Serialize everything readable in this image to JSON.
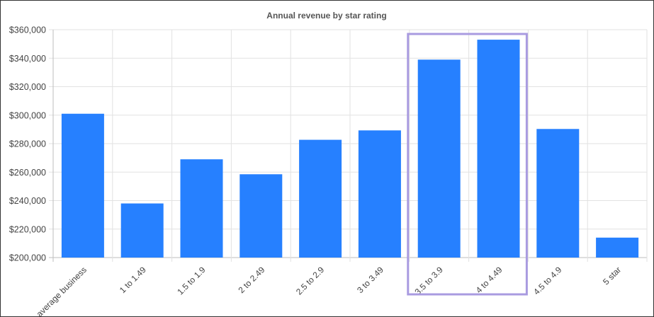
{
  "chart_data": {
    "type": "bar",
    "title": "Annual revenue by star rating",
    "categories": [
      "average business",
      "1 to 1.49",
      "1.5 to 1.9",
      "2 to 2.49",
      "2.5 to 2.9",
      "3 to 3.49",
      "3.5 to 3.9",
      "4 to 4.49",
      "4.5 to 4.9",
      "5 star"
    ],
    "values": [
      301000,
      238000,
      269000,
      258500,
      282700,
      289300,
      339000,
      353000,
      290300,
      214000
    ],
    "ylim": [
      200000,
      360000
    ],
    "yticks": [
      200000,
      220000,
      240000,
      260000,
      280000,
      300000,
      320000,
      340000,
      360000
    ],
    "ytick_labels": [
      "$200,000",
      "$220,000",
      "$240,000",
      "$260,000",
      "$280,000",
      "$300,000",
      "$320,000",
      "$340,000",
      "$360,000"
    ],
    "grid": true,
    "legend": "none",
    "highlighted_categories": [
      "3.5 to 3.9",
      "4 to 4.49"
    ],
    "colors": {
      "bar": "#2680ff",
      "highlight": "#a99be0",
      "grid": "#e2e2e2"
    }
  }
}
